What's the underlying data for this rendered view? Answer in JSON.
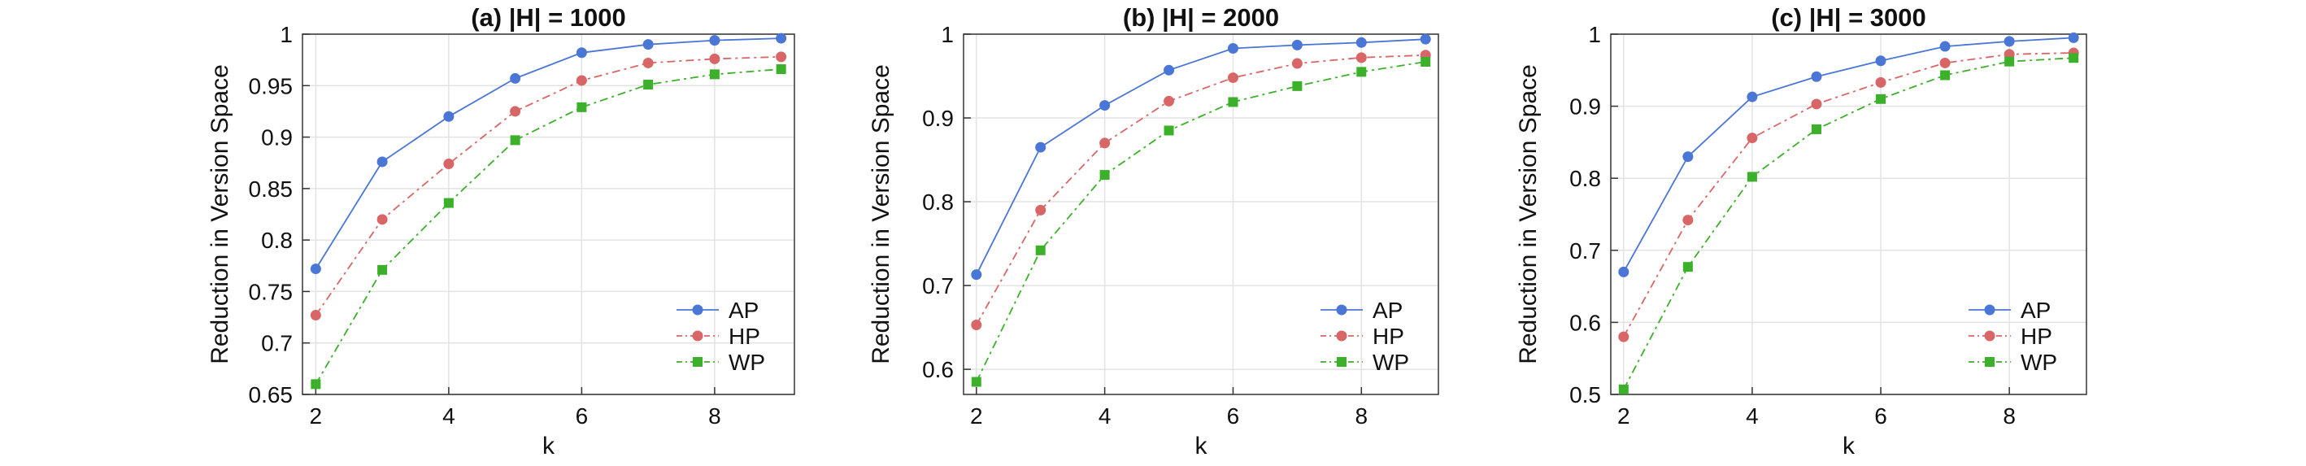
{
  "chart_data": [
    {
      "type": "line",
      "title": "(a) |H| = 1000",
      "xlabel": "k",
      "ylabel": "Reduction in Version Space",
      "x": [
        2,
        3,
        4,
        5,
        6,
        7,
        8,
        9
      ],
      "xlim": [
        1.8,
        9.2
      ],
      "ylim": [
        0.65,
        1.0
      ],
      "xticks": [
        "2",
        "4",
        "6",
        "8"
      ],
      "yticks": [
        "0.65",
        "0.7",
        "0.75",
        "0.8",
        "0.85",
        "0.9",
        "0.95",
        "1"
      ],
      "grid": true,
      "legend_position": "bottom-right",
      "series": [
        {
          "name": "AP",
          "values": [
            0.772,
            0.876,
            0.92,
            0.957,
            0.982,
            0.99,
            0.994,
            0.996
          ]
        },
        {
          "name": "HP",
          "values": [
            0.727,
            0.82,
            0.874,
            0.925,
            0.955,
            0.972,
            0.976,
            0.978
          ]
        },
        {
          "name": "WP",
          "values": [
            0.66,
            0.771,
            0.836,
            0.897,
            0.929,
            0.951,
            0.961,
            0.966
          ]
        }
      ]
    },
    {
      "type": "line",
      "title": "(b) |H| = 2000",
      "xlabel": "k",
      "ylabel": "Reduction in Version Space",
      "x": [
        2,
        3,
        4,
        5,
        6,
        7,
        8,
        9
      ],
      "xlim": [
        1.8,
        9.2
      ],
      "ylim": [
        0.57,
        1.0
      ],
      "xticks": [
        "2",
        "4",
        "6",
        "8"
      ],
      "yticks": [
        "0.6",
        "0.7",
        "0.8",
        "0.9",
        "1"
      ],
      "grid": true,
      "legend_position": "bottom-right",
      "series": [
        {
          "name": "AP",
          "values": [
            0.713,
            0.865,
            0.915,
            0.957,
            0.983,
            0.987,
            0.99,
            0.994
          ]
        },
        {
          "name": "HP",
          "values": [
            0.653,
            0.79,
            0.87,
            0.92,
            0.948,
            0.965,
            0.972,
            0.975
          ]
        },
        {
          "name": "WP",
          "values": [
            0.585,
            0.742,
            0.832,
            0.885,
            0.919,
            0.938,
            0.955,
            0.967
          ]
        }
      ]
    },
    {
      "type": "line",
      "title": "(c) |H| = 3000",
      "xlabel": "k",
      "ylabel": "Reduction in Version Space",
      "x": [
        2,
        3,
        4,
        5,
        6,
        7,
        8,
        9
      ],
      "xlim": [
        1.8,
        9.2
      ],
      "ylim": [
        0.5,
        1.0
      ],
      "xticks": [
        "2",
        "4",
        "6",
        "8"
      ],
      "yticks": [
        "0.5",
        "0.6",
        "0.7",
        "0.8",
        "0.9",
        "1"
      ],
      "grid": true,
      "legend_position": "bottom-right",
      "series": [
        {
          "name": "AP",
          "values": [
            0.67,
            0.83,
            0.913,
            0.941,
            0.963,
            0.983,
            0.99,
            0.995
          ]
        },
        {
          "name": "HP",
          "values": [
            0.58,
            0.742,
            0.856,
            0.903,
            0.933,
            0.96,
            0.972,
            0.974
          ]
        },
        {
          "name": "WP",
          "values": [
            0.507,
            0.677,
            0.802,
            0.868,
            0.91,
            0.943,
            0.962,
            0.967
          ]
        }
      ]
    }
  ],
  "series_styles": [
    {
      "name": "AP",
      "color": "#4a76d6",
      "marker": "circle",
      "dash": ""
    },
    {
      "name": "HP",
      "color": "#d96666",
      "marker": "circle",
      "dash": "10,5,3,5"
    },
    {
      "name": "WP",
      "color": "#3cb02a",
      "marker": "square",
      "dash": "10,5,3,5"
    }
  ]
}
